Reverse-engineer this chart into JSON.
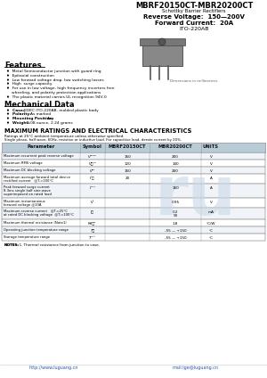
{
  "title": "MBRF20150CT-MBR20200CT",
  "subtitle": "Schottky Barrier Rectifiers",
  "spec_line1": "Reverse Voltage:  150—200V",
  "spec_line2": "Forward Current:  20A",
  "package": "ITO-220AB",
  "features_title": "Features",
  "features": [
    "Metal Semiconductor junction with guard ring",
    "Epitaxial construction",
    "Low forward voltage drop, low switching losses",
    "High  surge capacity",
    "For use in low voltage, high frequency inverters free",
    "  wheeling, and polarity protection applications",
    "The plastic material carries UL recognition 94V-0"
  ],
  "mech_title": "Mechanical Data",
  "mech_items": [
    [
      "Case: ",
      "JEDEC ITO-220AB, molded plastic body"
    ],
    [
      "Polarity: ",
      "As marked"
    ],
    [
      "Mounting Position: ",
      "Any"
    ],
    [
      "Weight: ",
      "0.08 ounce, 2.24 grams"
    ]
  ],
  "table_title": "MAXIMUM RATINGS AND ELECTRICAL CHARACTERISTICS",
  "table_note1": "Ratings at 25°C ambient temperature unless otherwise specified.",
  "table_note2": "Single phase, half wave, 60Hz, resistive or inductive load. For capacitive load, derate current by 20%.",
  "table_headers": [
    "Parameter",
    "Symbol",
    "MBRF20150CT",
    "MBR20200CT",
    "UNITS"
  ],
  "table_rows": [
    [
      "Maximum recurrent peak reverse voltage",
      "Vᴵᴿᴹᴹ",
      "150",
      "200",
      "V"
    ],
    [
      "Maximum RMS voltage",
      "Vᴯᴹᴸ",
      "120",
      "140",
      "V"
    ],
    [
      "Maximum DC blocking voltage",
      "Vᴰᶜ",
      "150",
      "200",
      "V"
    ],
    [
      "Maximum average forward total device\n rectified current   @Tₗ=100°C",
      "Iᴬᵜ",
      "20",
      "",
      "A"
    ],
    [
      "Peak forward surge current\n 8.3ms single half sine-wave\n superimposed on rated load",
      "Iᴬᴸᴹ",
      "",
      "150",
      "A"
    ],
    [
      "Maximum instantaneous\n forward voltage @10A",
      "Vᶠ",
      "",
      "0.95",
      "V"
    ],
    [
      "Maximum reverse current   @Tₗ=25°C\n at rated DC blocking voltage  @Tₗ=100°C",
      "Iᴯ",
      "",
      "0.2\n50",
      "mA"
    ],
    [
      "Maximum thermal resistance (Note1)",
      "Rθⰼᶜ",
      "",
      "1.8",
      "°C/W"
    ],
    [
      "Operating junction temperature range",
      "Tⰼ",
      "",
      "-55 — +150",
      "°C"
    ],
    [
      "Storage temperature range",
      "Tᴸᴸᴴ",
      "",
      "-55 — +150",
      "°C"
    ]
  ],
  "note_label": "NOTES:",
  "note_text": "1. Thermal resistance from junction to case.",
  "footer_left": "http://www.luguang.cn",
  "footer_right": "mail:lge@luguang.cn",
  "bg_color": "#ffffff",
  "table_header_bg": "#b8ccd8",
  "table_row_odd": "#f0f4f8",
  "table_row_even": "#ffffff",
  "border_color": "#999999",
  "watermark_color": "#c8d8e8"
}
